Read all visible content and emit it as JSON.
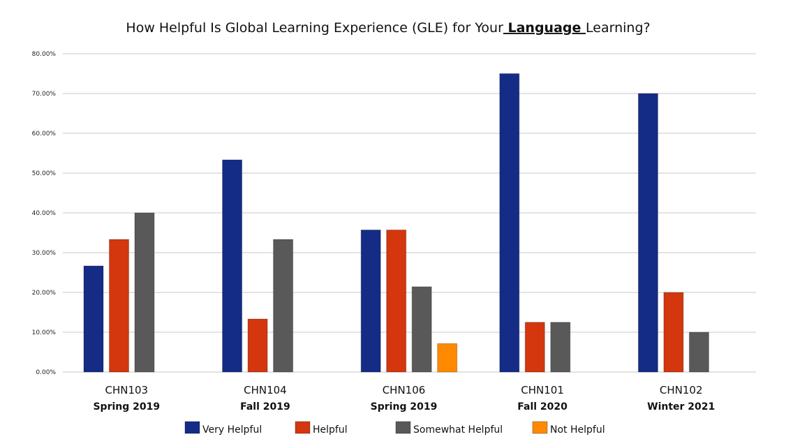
{
  "chart_data": {
    "type": "bar",
    "title": {
      "before": "How Helpful Is Global Learning Experience (GLE) for Your",
      "emphasis": " Language ",
      "after": "Learning?"
    },
    "categories": [
      {
        "code": "CHN103",
        "term": "Spring 2019"
      },
      {
        "code": "CHN104",
        "term": "Fall 2019"
      },
      {
        "code": "CHN106",
        "term": "Spring 2019"
      },
      {
        "code": "CHN101",
        "term": "Fall 2020"
      },
      {
        "code": "CHN102",
        "term": "Winter 2021"
      }
    ],
    "series": [
      {
        "name": "Very Helpful",
        "color": "#142c86",
        "values": [
          26.67,
          53.33,
          35.71,
          75.0,
          70.0
        ]
      },
      {
        "name": "Helpful",
        "color": "#d4360d",
        "values": [
          33.33,
          13.33,
          35.71,
          12.5,
          20.0
        ]
      },
      {
        "name": "Somewhat Helpful",
        "color": "#595959",
        "values": [
          40.0,
          33.33,
          21.43,
          12.5,
          10.0
        ]
      },
      {
        "name": "Not Helpful",
        "color": "#ff8a00",
        "values": [
          0,
          0,
          7.14,
          0,
          0
        ]
      }
    ],
    "ylim": [
      0,
      80
    ],
    "yticks": [
      "0.00%",
      "10.00%",
      "20.00%",
      "30.00%",
      "40.00%",
      "50.00%",
      "60.00%",
      "70.00%",
      "80.00%"
    ],
    "grid": true,
    "legend": "bottom",
    "xlabel": "",
    "ylabel": ""
  }
}
